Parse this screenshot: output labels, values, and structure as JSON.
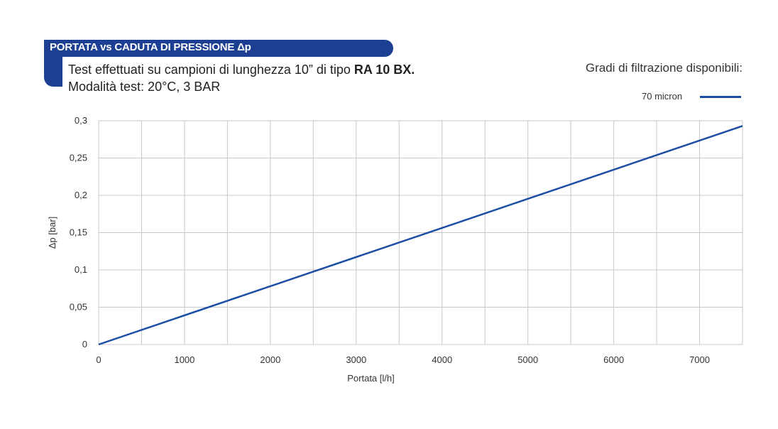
{
  "header": {
    "title": "PORTATA vs CADUTA DI PRESSIONE Δp",
    "subtitle_prefix": "Test effettuati su campioni di lunghezza 10” di tipo ",
    "subtitle_bold": "RA 10 BX.",
    "subtitle2": "Modalità test: 20°C, 3 BAR"
  },
  "legend": {
    "title": "Gradi di filtrazione disponibili:"
  },
  "colors": {
    "banner": "#1c3f94",
    "series": "#1c4ea6",
    "grid": "#c8c8c8"
  },
  "chart_data": {
    "type": "line",
    "title": "PORTATA vs CADUTA DI PRESSIONE Δp",
    "xlabel": "Portata [l/h]",
    "ylabel": "Δp [bar]",
    "xlim": [
      0,
      7500
    ],
    "ylim": [
      0,
      0.3
    ],
    "x_ticks": [
      0,
      1000,
      2000,
      3000,
      4000,
      5000,
      6000,
      7000
    ],
    "x_tick_labels": [
      "0",
      "1000",
      "2000",
      "3000",
      "4000",
      "5000",
      "6000",
      "7000"
    ],
    "y_ticks": [
      0,
      0.05,
      0.1,
      0.15,
      0.2,
      0.25,
      0.3
    ],
    "y_tick_labels": [
      "0",
      "0,05",
      "0,1",
      "0,15",
      "0,2",
      "0,25",
      "0,3"
    ],
    "x_grid": [
      0,
      500,
      1000,
      1500,
      2000,
      2500,
      3000,
      3500,
      4000,
      4500,
      5000,
      5500,
      6000,
      6500,
      7000,
      7500
    ],
    "grid": true,
    "legend_position": "top-right",
    "series": [
      {
        "name": "70 micron",
        "x": [
          0,
          7500
        ],
        "y": [
          0,
          0.293
        ]
      }
    ]
  }
}
